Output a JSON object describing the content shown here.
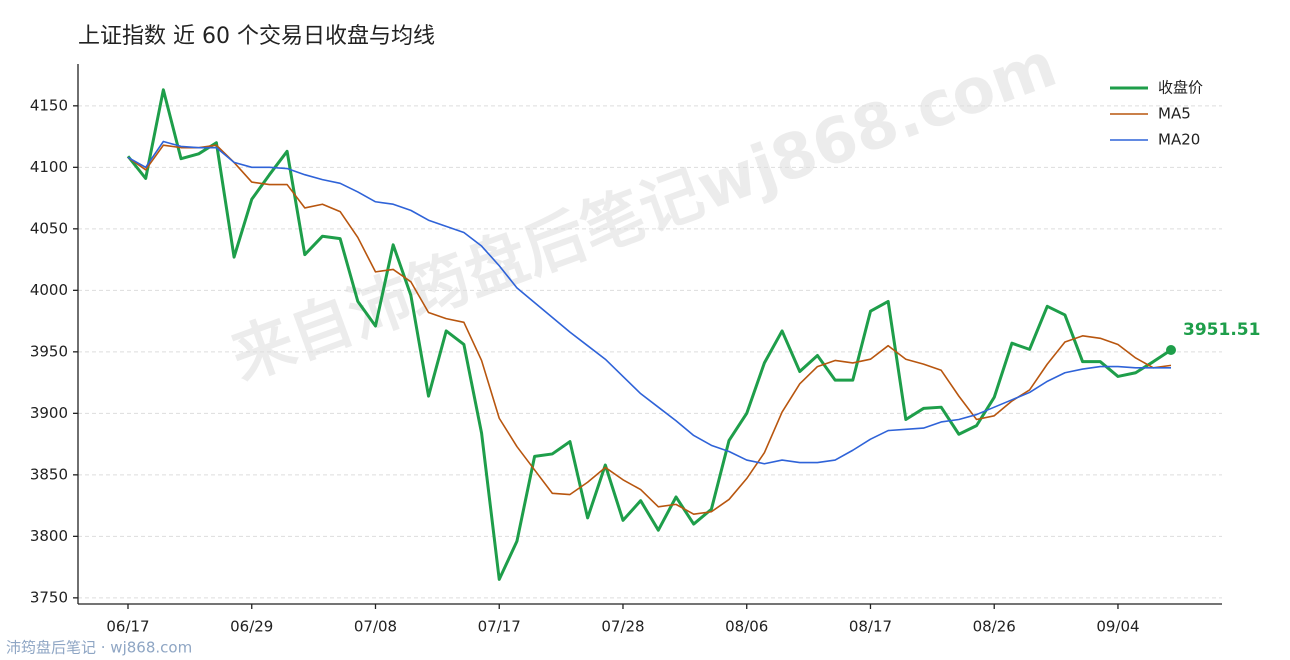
{
  "chart_data": {
    "type": "line",
    "title": "上证指数 近 60 个交易日收盘与均线",
    "watermark": "来自沛筠盘后笔记wj868.com",
    "footer": "沛筠盘后笔记 · wj868.com",
    "categories": [
      "06/17",
      null,
      null,
      null,
      null,
      null,
      null,
      "06/29",
      null,
      null,
      null,
      null,
      null,
      null,
      "07/08",
      null,
      null,
      null,
      null,
      null,
      null,
      "07/17",
      null,
      null,
      null,
      null,
      null,
      null,
      "07/28",
      null,
      null,
      null,
      null,
      null,
      null,
      "08/06",
      null,
      null,
      null,
      null,
      null,
      null,
      "08/17",
      null,
      null,
      null,
      null,
      null,
      null,
      "08/26",
      null,
      null,
      null,
      null,
      null,
      null,
      "09/04",
      null,
      null,
      null
    ],
    "series": [
      {
        "name": "收盘价",
        "color": "#1e9e4a",
        "width": 3,
        "label_last": true,
        "values": [
          4109,
          4091,
          4163,
          4107,
          4111,
          4120,
          4027,
          4074,
          4094,
          4113,
          4029,
          4044,
          4042,
          3991,
          3971,
          4037,
          3996,
          3914,
          3967,
          3956,
          3884,
          3765,
          3796,
          3865,
          3867,
          3877,
          3815,
          3858,
          3813,
          3829,
          3805,
          3832,
          3810,
          3822,
          3878,
          3900,
          3941,
          3967,
          3934,
          3947,
          3927,
          3927,
          3983,
          3991,
          3895,
          3904,
          3905,
          3883,
          3890,
          3913,
          3957,
          3952,
          3987,
          3980,
          3942,
          3942,
          3930,
          3933,
          3942,
          3951.51
        ]
      },
      {
        "name": "MA5",
        "color": "#b8560f",
        "width": 1.6,
        "values": [
          4108,
          4098,
          4118,
          4116,
          4116,
          4118,
          4104,
          4088,
          4086,
          4086,
          4067,
          4070,
          4064,
          4043,
          4015,
          4017,
          4007,
          3982,
          3977,
          3974,
          3943,
          3896,
          3873,
          3854,
          3835,
          3834,
          3844,
          3856,
          3846,
          3838,
          3824,
          3826,
          3818,
          3820,
          3830,
          3847,
          3868,
          3901,
          3924,
          3938,
          3943,
          3941,
          3944,
          3955,
          3944,
          3940,
          3935,
          3914,
          3895,
          3898,
          3910,
          3919,
          3940,
          3958,
          3963,
          3961,
          3956,
          3945,
          3937,
          3939
        ]
      },
      {
        "name": "MA20",
        "color": "#2f63d8",
        "width": 1.6,
        "values": [
          4108,
          4100,
          4121,
          4117,
          4116,
          4116,
          4104,
          4100,
          4100,
          4099,
          4094,
          4090,
          4087,
          4080,
          4072,
          4070,
          4065,
          4057,
          4052,
          4047,
          4036,
          4020,
          4002,
          3990,
          3978,
          3966,
          3955,
          3944,
          3930,
          3916,
          3905,
          3894,
          3882,
          3874,
          3869,
          3862,
          3859,
          3862,
          3860,
          3860,
          3862,
          3870,
          3879,
          3886,
          3887,
          3888,
          3893,
          3895,
          3899,
          3905,
          3911,
          3917,
          3926,
          3933,
          3936,
          3938,
          3938,
          3937,
          3937,
          3937
        ]
      }
    ],
    "ylim": [
      3745,
      4184
    ],
    "yticks": [
      3750,
      3800,
      3850,
      3900,
      3950,
      4000,
      4050,
      4100,
      4150
    ],
    "grid": true,
    "legend": "upper-right"
  }
}
